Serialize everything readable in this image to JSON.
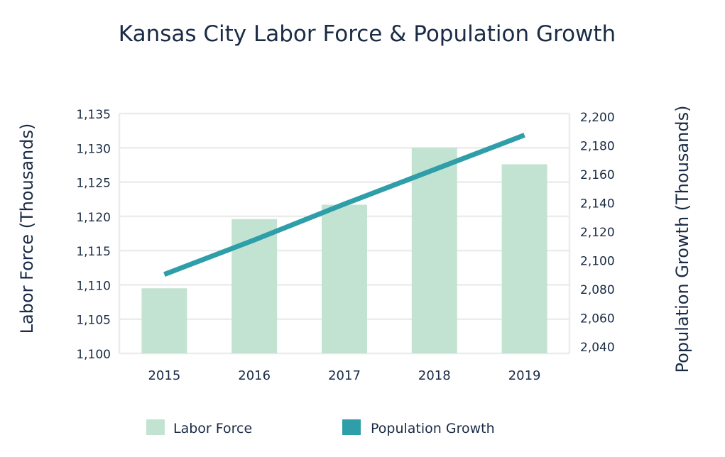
{
  "chart_data": {
    "type": "bar",
    "title": "Kansas City Labor Force & Population Growth",
    "categories": [
      "2015",
      "2016",
      "2017",
      "2018",
      "2019"
    ],
    "series": [
      {
        "name": "Labor Force",
        "type": "bar",
        "axis": "left",
        "color": "#c3e3d2",
        "values": [
          1109.5,
          1119.6,
          1121.7,
          1130.0,
          1127.6
        ]
      },
      {
        "name": "Population Growth",
        "type": "line",
        "axis": "right",
        "color": "#2e9ea9",
        "values": [
          2090,
          2114,
          2139,
          2163,
          2187
        ]
      }
    ],
    "ylabel_left": "Labor Force (Thousands)",
    "ylabel_right": "Population Growth (Thousands)",
    "ylim_left": [
      1100,
      1135
    ],
    "yticks_left": [
      "1,100",
      "1,105",
      "1,110",
      "1,115",
      "1,120",
      "1,125",
      "1,130",
      "1,135"
    ],
    "ylim_right": [
      2035,
      2202
    ],
    "yticks_right": [
      "2,040",
      "2,060",
      "2,080",
      "2,100",
      "2,120",
      "2,140",
      "2,160",
      "2,180",
      "2,200"
    ],
    "grid": true,
    "legend_position": "bottom"
  }
}
